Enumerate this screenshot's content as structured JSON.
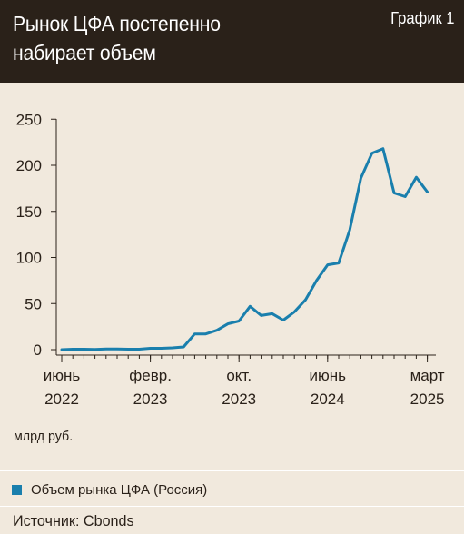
{
  "header": {
    "title": "Рынок ЦФА постепенно\nнабирает объем",
    "figure_label": "График 1"
  },
  "unit_label": "млрд руб.",
  "legend": {
    "label": "Объем рынка ЦФА (Россия)"
  },
  "source": "Источник: Cbonds",
  "colors": {
    "series": "#1a7fad",
    "header_bg": "#2a2119",
    "background": "#f1e9dd",
    "text": "#2a2119"
  },
  "chart_data": {
    "type": "line",
    "grid": false,
    "ylim": [
      0,
      250
    ],
    "y_ticks": [
      0,
      50,
      100,
      150,
      200,
      250
    ],
    "x_ticks": [
      {
        "index": 0,
        "month": "июнь",
        "year": "2022"
      },
      {
        "index": 8,
        "month": "февр.",
        "year": "2023"
      },
      {
        "index": 16,
        "month": "окт.",
        "year": "2023"
      },
      {
        "index": 24,
        "month": "июнь",
        "year": "2024"
      },
      {
        "index": 33,
        "month": "март",
        "year": "2025"
      }
    ],
    "series": [
      {
        "name": "Объем рынка ЦФА (Россия)",
        "x": [
          "2022-06",
          "2022-07",
          "2022-08",
          "2022-09",
          "2022-10",
          "2022-11",
          "2022-12",
          "2023-01",
          "2023-02",
          "2023-03",
          "2023-04",
          "2023-05",
          "2023-06",
          "2023-07",
          "2023-08",
          "2023-09",
          "2023-10",
          "2023-11",
          "2023-12",
          "2024-01",
          "2024-02",
          "2024-03",
          "2024-04",
          "2024-05",
          "2024-06",
          "2024-07",
          "2024-08",
          "2024-09",
          "2024-10",
          "2024-11",
          "2024-12",
          "2025-01",
          "2025-02",
          "2025-03"
        ],
        "values": [
          0,
          0.5,
          0.5,
          0.3,
          0.8,
          0.8,
          0.5,
          0.5,
          1.5,
          1.5,
          2,
          3,
          17,
          17,
          21,
          28,
          31,
          47,
          37,
          39,
          32,
          41,
          54,
          75,
          92,
          94,
          130,
          186,
          213,
          218,
          170,
          166,
          187,
          171
        ]
      }
    ]
  }
}
